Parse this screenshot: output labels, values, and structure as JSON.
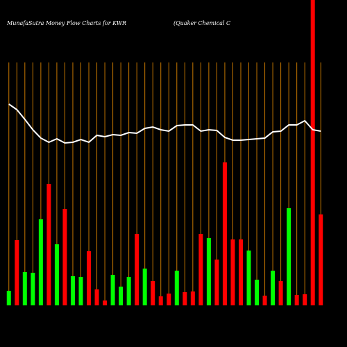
{
  "chart_data": {
    "type": "bar",
    "title": "MunafaSutra  Money Flow  Charts for KWR",
    "subtitle": "(Quaker Chemical C",
    "ylim": [
      0,
      440
    ],
    "values": [
      21,
      94,
      48,
      47,
      124,
      175,
      88,
      139,
      42,
      41,
      78,
      23,
      7,
      44,
      27,
      41,
      103,
      53,
      35,
      13,
      17,
      50,
      19,
      20,
      103,
      97,
      66,
      206,
      95,
      95,
      79,
      37,
      14,
      50,
      35,
      140,
      15,
      16,
      440,
      131
    ],
    "colors": [
      "#00ff00",
      "#ff0000",
      "#00ff00",
      "#00ff00",
      "#00ff00",
      "#ff0000",
      "#00ff00",
      "#ff0000",
      "#00ff00",
      "#00ff00",
      "#ff0000",
      "#ff0000",
      "#ff0000",
      "#00ff00",
      "#00ff00",
      "#00ff00",
      "#ff0000",
      "#00ff00",
      "#ff0000",
      "#ff0000",
      "#ff0000",
      "#00ff00",
      "#ff0000",
      "#ff0000",
      "#ff0000",
      "#00ff00",
      "#ff0000",
      "#ff0000",
      "#ff0000",
      "#ff0000",
      "#00ff00",
      "#00ff00",
      "#ff0000",
      "#00ff00",
      "#ff0000",
      "#00ff00",
      "#ff0000",
      "#ff0000",
      "#ff0000",
      "#ff0000"
    ],
    "line": {
      "color": "#ffffff",
      "values": [
        290,
        282,
        268,
        253,
        241,
        235,
        240,
        234,
        235,
        239,
        235,
        245,
        243,
        246,
        245,
        249,
        248,
        255,
        257,
        253,
        251,
        259,
        260,
        260,
        251,
        253,
        252,
        242,
        238,
        238,
        239,
        240,
        241,
        250,
        251,
        260,
        260,
        266,
        253,
        251
      ]
    },
    "gridline_color": "#c87800"
  }
}
